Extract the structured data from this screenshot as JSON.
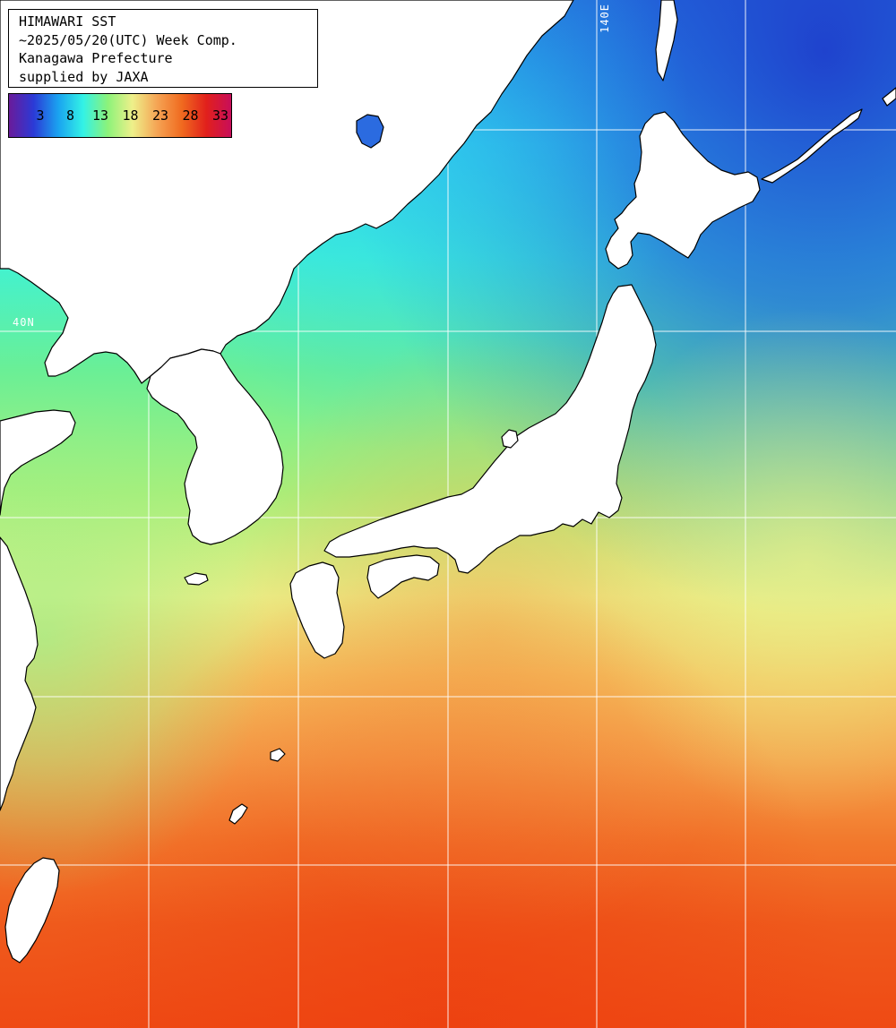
{
  "info": {
    "line1": "HIMAWARI SST",
    "line2": "~2025/05/20(UTC) Week Comp.",
    "line3": "Kanagawa Prefecture",
    "line4": "supplied by JAXA"
  },
  "legend": {
    "ticks": [
      "3",
      "8",
      "13",
      "18",
      "23",
      "28",
      "33"
    ],
    "colors": [
      "#6a1b9a",
      "#2b3ad6",
      "#1aa3f0",
      "#33f2e6",
      "#8cf27a",
      "#eef08a",
      "#f5a454",
      "#f06a1f",
      "#e1201c",
      "#c80e5a"
    ]
  },
  "grid": {
    "lat_label": "40N",
    "lon_label": "140E"
  },
  "colors": {
    "warm": "#f2501a",
    "mid": "#f4c35a",
    "cool": "#8bef85",
    "cold": "#3de6dc",
    "polar": "#2a59d8"
  }
}
